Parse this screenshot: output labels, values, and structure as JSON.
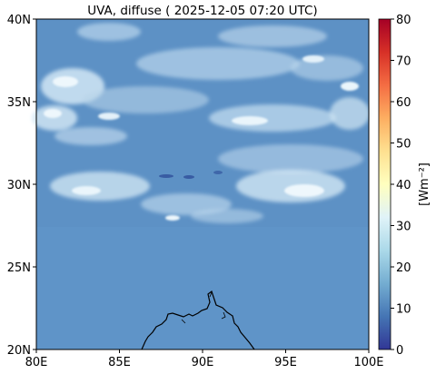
{
  "title": "UVA, diffuse ( 2025-12-05 07:20 UTC)",
  "map": {
    "lon_range": [
      80,
      100
    ],
    "lat_range": [
      20,
      40
    ],
    "x_ticks": [
      "80E",
      "85E",
      "90E",
      "95E",
      "100E"
    ],
    "y_ticks": [
      "20N",
      "25N",
      "30N",
      "35N",
      "40N"
    ],
    "background_color": "#5a8fc4",
    "cloud_color": "#d9ecf7"
  },
  "colorbar": {
    "label": "[Wm⁻²]",
    "ticks": [
      "0",
      "10",
      "20",
      "30",
      "40",
      "50",
      "60",
      "70",
      "80"
    ],
    "min": 0,
    "max": 80,
    "colormap": [
      "#313695",
      "#4575b4",
      "#74add1",
      "#abd9e9",
      "#e0f3f8",
      "#ffffbf",
      "#fee090",
      "#fdae61",
      "#f46d43",
      "#d73027",
      "#a50026"
    ]
  }
}
